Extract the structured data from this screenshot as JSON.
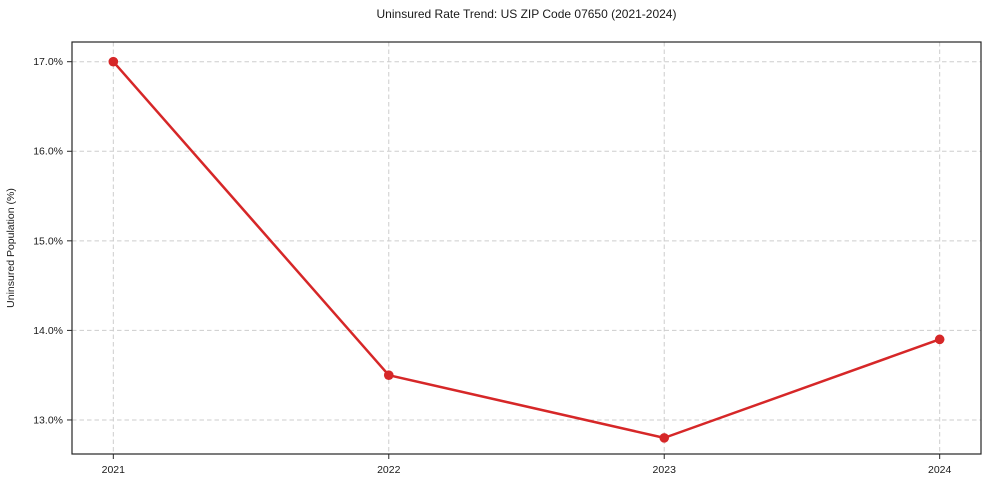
{
  "chart_data": {
    "type": "line",
    "title": "Uninsured Rate Trend: US ZIP Code 07650 (2021-2024)",
    "xlabel": "",
    "ylabel": "Uninsured Population (%)",
    "x": [
      2021,
      2022,
      2023,
      2024
    ],
    "values": [
      17.0,
      13.5,
      12.8,
      13.9
    ],
    "x_tick_labels": [
      "2021",
      "2022",
      "2023",
      "2024"
    ],
    "y_ticks": [
      13.0,
      14.0,
      15.0,
      16.0,
      17.0
    ],
    "y_tick_labels": [
      "13.0%",
      "14.0%",
      "15.0%",
      "16.0%",
      "17.0%"
    ],
    "xlim": [
      2020.85,
      2024.15
    ],
    "ylim": [
      12.62,
      17.22
    ],
    "grid": true,
    "grid_style": "dashed",
    "legend_position": "none",
    "colors": {
      "line": "#d62728",
      "marker": "#d62728",
      "grid": "#cdcdcd",
      "spine": "#262626",
      "text": "#1a1a1a",
      "background": "#ffffff"
    }
  }
}
